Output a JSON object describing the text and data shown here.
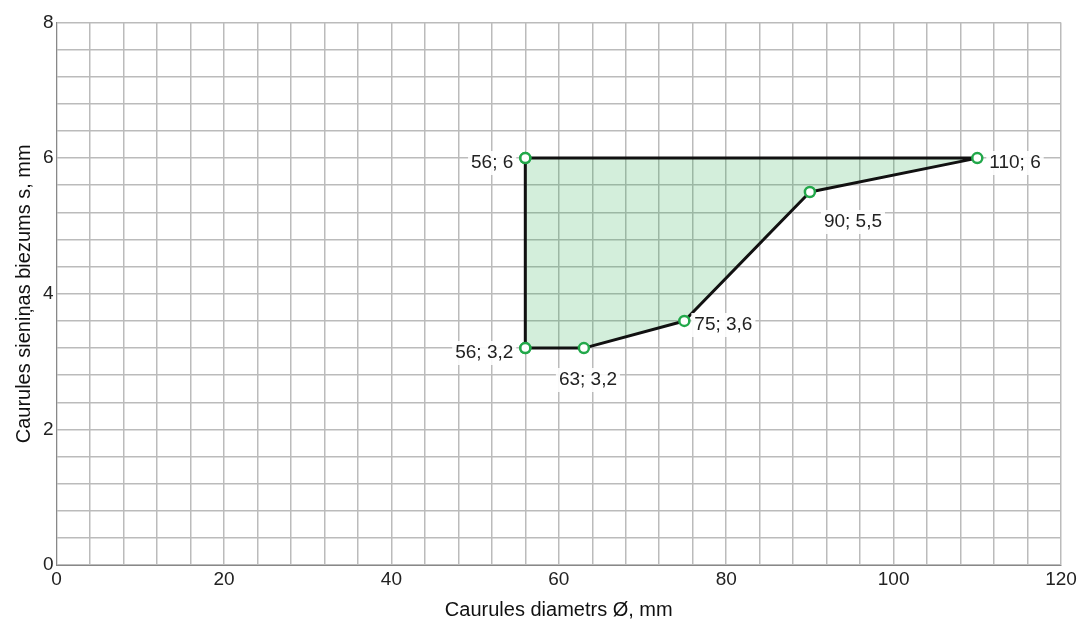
{
  "chart_data": {
    "type": "area",
    "xlabel": "Caurules diametrs Ø, mm",
    "ylabel": "Caurules sieniņas biezums s, mm",
    "xlim": [
      0,
      120
    ],
    "ylim": [
      0,
      8
    ],
    "xticks": [
      0,
      {
        "value": 4,
        "label": null
      },
      {
        "value": 8,
        "label": null
      },
      {
        "value": 12,
        "label": null
      },
      {
        "value": 16,
        "label": null
      },
      20,
      {
        "value": 24,
        "label": null
      },
      {
        "value": 28,
        "label": null
      },
      {
        "value": 32,
        "label": null
      },
      {
        "value": 36,
        "label": null
      },
      40,
      {
        "value": 44,
        "label": null
      },
      {
        "value": 48,
        "label": null
      },
      {
        "value": 52,
        "label": null
      },
      {
        "value": 56,
        "label": null
      },
      60,
      {
        "value": 64,
        "label": null
      },
      {
        "value": 68,
        "label": null
      },
      {
        "value": 72,
        "label": null
      },
      {
        "value": 76,
        "label": null
      },
      80,
      {
        "value": 84,
        "label": null
      },
      {
        "value": 88,
        "label": null
      },
      {
        "value": 92,
        "label": null
      },
      {
        "value": 96,
        "label": null
      },
      100,
      {
        "value": 104,
        "label": null
      },
      {
        "value": 108,
        "label": null
      },
      {
        "value": 112,
        "label": null
      },
      {
        "value": 116,
        "label": null
      },
      120
    ],
    "yticks": [
      0,
      {
        "value": 0.4,
        "label": null
      },
      {
        "value": 0.8,
        "label": null
      },
      {
        "value": 1.2,
        "label": null
      },
      {
        "value": 1.6,
        "label": null
      },
      2,
      {
        "value": 2.4,
        "label": null
      },
      {
        "value": 2.8,
        "label": null
      },
      {
        "value": 3.2,
        "label": null
      },
      {
        "value": 3.6,
        "label": null
      },
      4,
      {
        "value": 4.4,
        "label": null
      },
      {
        "value": 4.8,
        "label": null
      },
      {
        "value": 5.2,
        "label": null
      },
      {
        "value": 5.6,
        "label": null
      },
      6,
      {
        "value": 6.4,
        "label": null
      },
      {
        "value": 6.8,
        "label": null
      },
      {
        "value": 7.2,
        "label": null
      },
      {
        "value": 7.6,
        "label": null
      },
      8
    ],
    "grid": true,
    "marker": "circle",
    "line_style": "solid",
    "series": [
      {
        "color": "#111111",
        "x": [
          56,
          110,
          90,
          75,
          63,
          56
        ],
        "values": [
          6,
          6,
          5.5,
          3.6,
          3.2,
          3.2
        ],
        "colors": [
          "#22a84a",
          "#22a84a",
          "#22a84a",
          "#22a84a",
          "#22a84a",
          "#22a84a"
        ],
        "value_labels": [
          "56; 6",
          "110; 6",
          "90; 5,5",
          "75; 3,6",
          "63; 3,2",
          "56; 3,2"
        ]
      }
    ]
  }
}
